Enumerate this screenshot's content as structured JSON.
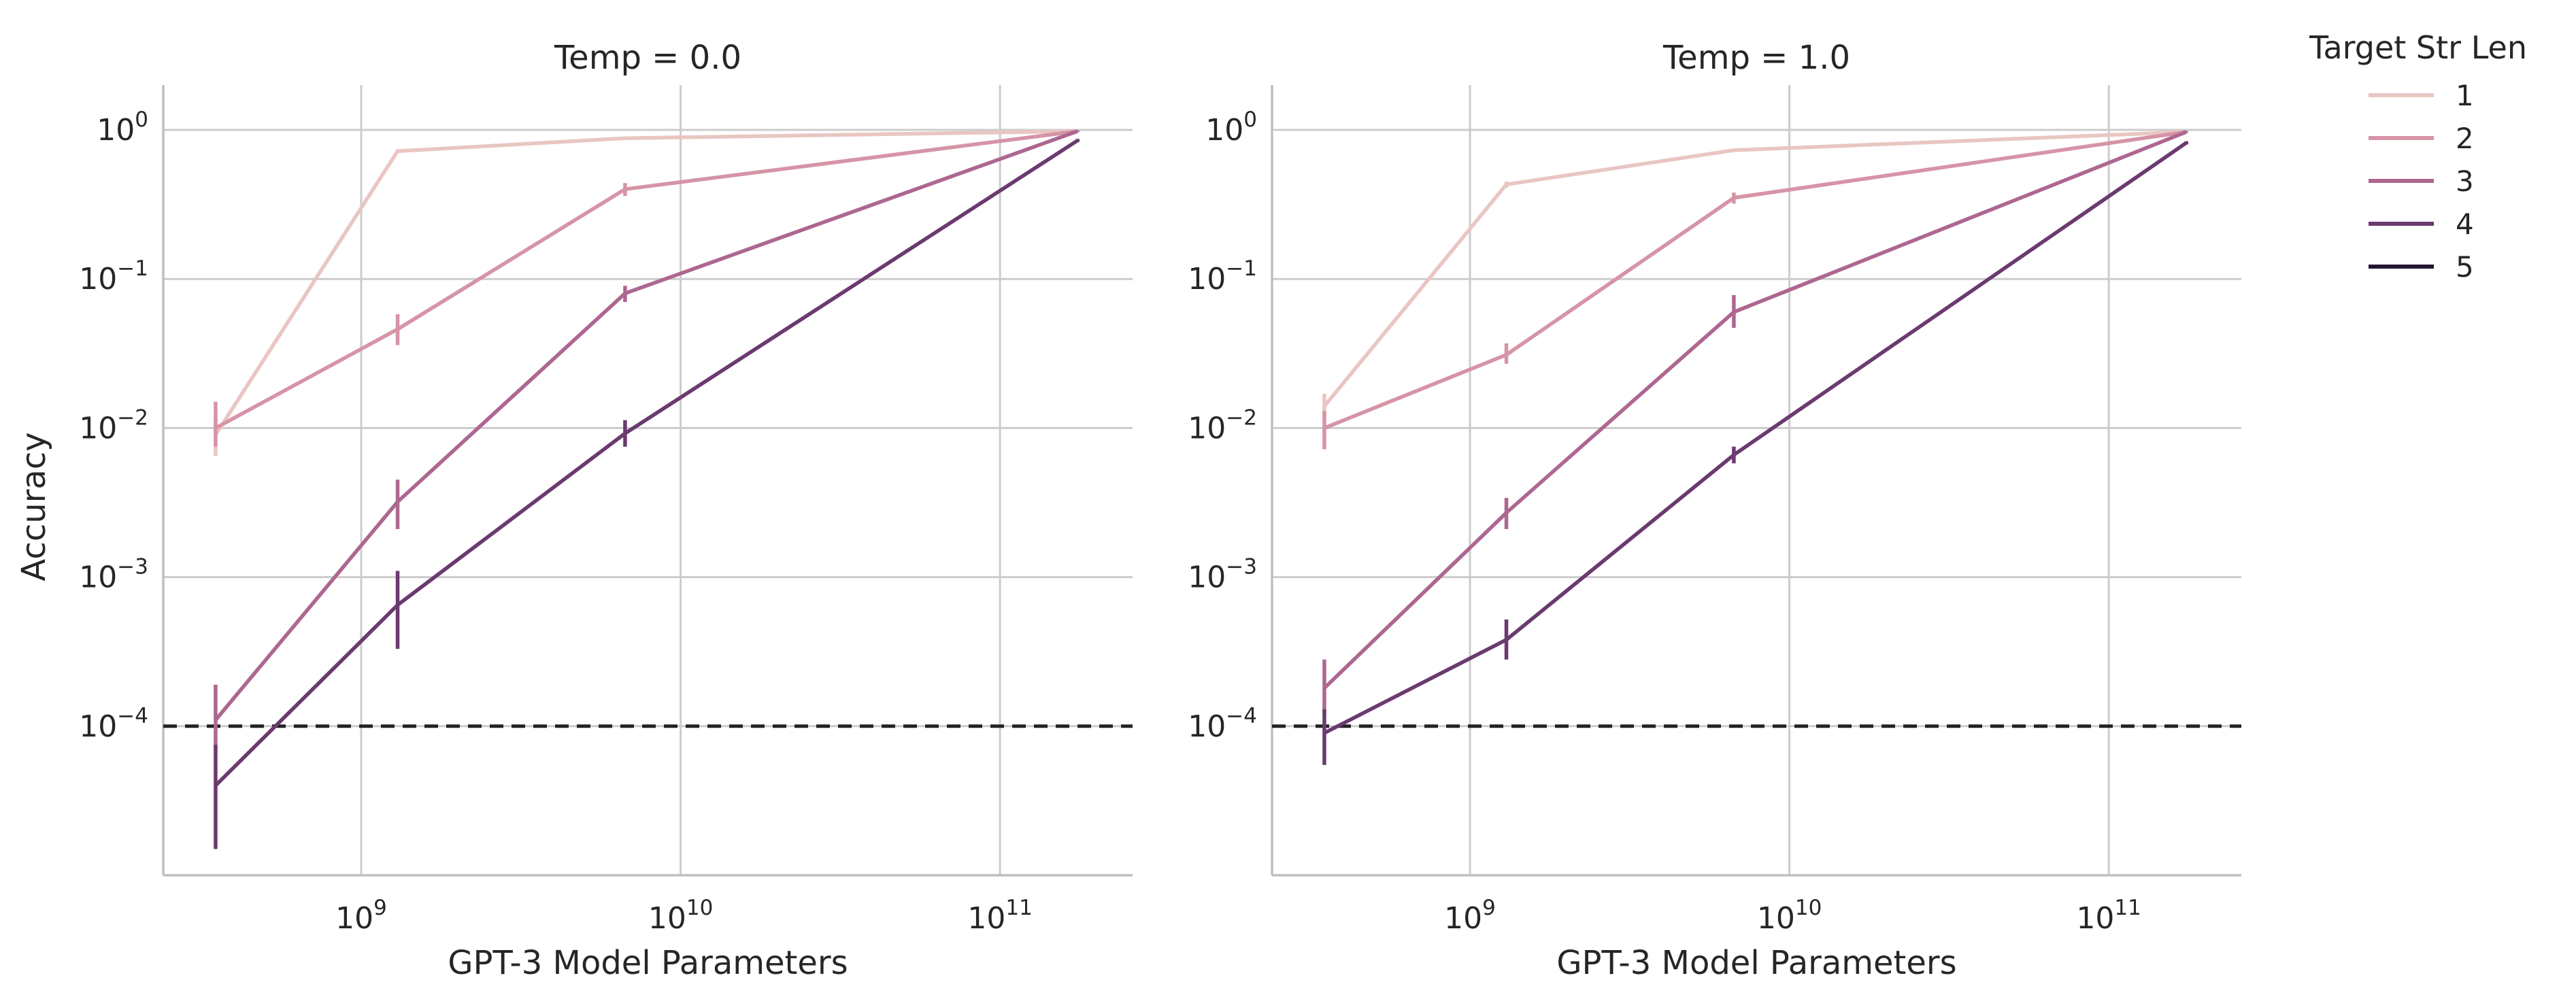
{
  "figure": {
    "legend": {
      "title": "Target Str Len",
      "placement": "right",
      "entries": [
        {
          "label": "1",
          "color": "#e9c6c2"
        },
        {
          "label": "2",
          "color": "#d694a6"
        },
        {
          "label": "3",
          "color": "#ad6790"
        },
        {
          "label": "4",
          "color": "#6b3a70"
        },
        {
          "label": "5",
          "color": "#241530"
        }
      ]
    },
    "ylabel": "Accuracy"
  },
  "chart_data": [
    {
      "type": "line",
      "title": "Temp = 0.0",
      "xlabel": "GPT-3 Model Parameters",
      "ylabel": "Accuracy",
      "xscale": "log",
      "yscale": "log",
      "grid": true,
      "xlim": [
        240000000.0,
        260000000000.0
      ],
      "ylim": [
        1e-05,
        2
      ],
      "x_ticks": [
        {
          "value": 1000000000.0,
          "base": "10",
          "exp": "9"
        },
        {
          "value": 10000000000.0,
          "base": "10",
          "exp": "10"
        },
        {
          "value": 100000000000.0,
          "base": "10",
          "exp": "11"
        }
      ],
      "y_ticks": [
        {
          "value": 0.0001,
          "base": "10",
          "exp": "−4"
        },
        {
          "value": 0.001,
          "base": "10",
          "exp": "−3"
        },
        {
          "value": 0.01,
          "base": "10",
          "exp": "−2"
        },
        {
          "value": 0.1,
          "base": "10",
          "exp": "−1"
        },
        {
          "value": 1,
          "base": "10",
          "exp": "0"
        }
      ],
      "reference_line": {
        "y": 0.0001,
        "style": "dashed",
        "color": "#222222"
      },
      "x": [
        350000000.0,
        1300000000.0,
        6700000000.0,
        175000000000.0
      ],
      "series": [
        {
          "name": "1",
          "color": "#e9c6c2",
          "values": [
            0.009,
            0.72,
            0.88,
            0.98
          ],
          "err_low": [
            0.0065,
            0.7,
            0.86,
            0.97
          ],
          "err_high": [
            0.012,
            0.74,
            0.9,
            0.99
          ]
        },
        {
          "name": "2",
          "color": "#d694a6",
          "values": [
            0.01,
            0.046,
            0.4,
            0.98
          ],
          "err_low": [
            0.0075,
            0.036,
            0.36,
            0.97
          ],
          "err_high": [
            0.015,
            0.058,
            0.44,
            0.99
          ]
        },
        {
          "name": "3",
          "color": "#ad6790",
          "values": [
            0.00011,
            0.0032,
            0.08,
            0.98
          ],
          "err_low": [
            7e-05,
            0.0021,
            0.07,
            0.97
          ],
          "err_high": [
            0.00019,
            0.0045,
            0.09,
            0.99
          ]
        },
        {
          "name": "4",
          "color": "#6b3a70",
          "values": [
            4e-05,
            0.00065,
            0.0092,
            0.85
          ],
          "err_low": [
            1.5e-05,
            0.00033,
            0.0075,
            0.83
          ],
          "err_high": [
            7.5e-05,
            0.0011,
            0.0113,
            0.87
          ]
        }
      ]
    },
    {
      "type": "line",
      "title": "Temp = 1.0",
      "xlabel": "GPT-3 Model Parameters",
      "ylabel": "",
      "xscale": "log",
      "yscale": "log",
      "grid": true,
      "xlim": [
        240000000.0,
        260000000000.0
      ],
      "ylim": [
        1e-05,
        2
      ],
      "x_ticks": [
        {
          "value": 1000000000.0,
          "base": "10",
          "exp": "9"
        },
        {
          "value": 10000000000.0,
          "base": "10",
          "exp": "10"
        },
        {
          "value": 100000000000.0,
          "base": "10",
          "exp": "11"
        }
      ],
      "y_ticks": [
        {
          "value": 0.0001,
          "base": "10",
          "exp": "−4"
        },
        {
          "value": 0.001,
          "base": "10",
          "exp": "−3"
        },
        {
          "value": 0.01,
          "base": "10",
          "exp": "−2"
        },
        {
          "value": 0.1,
          "base": "10",
          "exp": "−1"
        },
        {
          "value": 1,
          "base": "10",
          "exp": "0"
        }
      ],
      "reference_line": {
        "y": 0.0001,
        "style": "dashed",
        "color": "#222222"
      },
      "x": [
        350000000.0,
        1300000000.0,
        6700000000.0,
        175000000000.0
      ],
      "series": [
        {
          "name": "1",
          "color": "#e9c6c2",
          "values": [
            0.014,
            0.43,
            0.73,
            0.97
          ],
          "err_low": [
            0.012,
            0.41,
            0.71,
            0.96
          ],
          "err_high": [
            0.017,
            0.45,
            0.75,
            0.98
          ]
        },
        {
          "name": "2",
          "color": "#d694a6",
          "values": [
            0.01,
            0.031,
            0.35,
            0.97
          ],
          "err_low": [
            0.0072,
            0.027,
            0.32,
            0.96
          ],
          "err_high": [
            0.013,
            0.037,
            0.38,
            0.98
          ]
        },
        {
          "name": "3",
          "color": "#ad6790",
          "values": [
            0.00018,
            0.0027,
            0.06,
            0.97
          ],
          "err_low": [
            0.00012,
            0.0021,
            0.047,
            0.96
          ],
          "err_high": [
            0.00028,
            0.0034,
            0.078,
            0.98
          ]
        },
        {
          "name": "4",
          "color": "#6b3a70",
          "values": [
            9e-05,
            0.00038,
            0.0066,
            0.82
          ],
          "err_low": [
            5.5e-05,
            0.00028,
            0.0058,
            0.8
          ],
          "err_high": [
            0.00013,
            0.00052,
            0.0075,
            0.84
          ]
        }
      ]
    }
  ]
}
